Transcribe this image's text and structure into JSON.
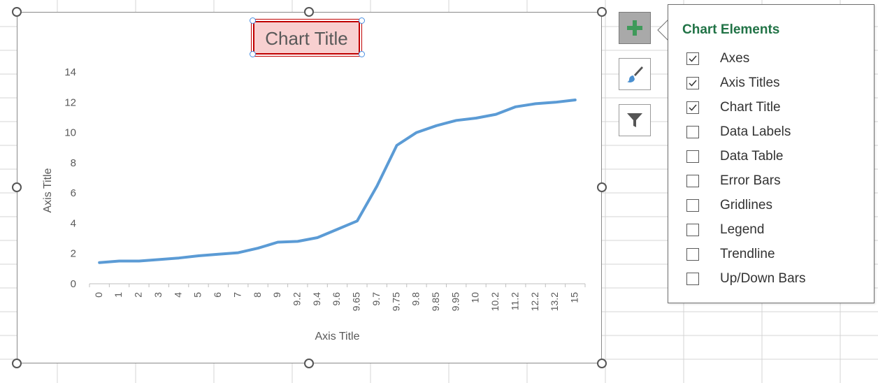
{
  "chart": {
    "title": "Chart Title",
    "x_axis_title": "Axis Title",
    "y_axis_title": "Axis Title",
    "line_color": "#5b9bd5"
  },
  "chart_data": {
    "type": "line",
    "title": "Chart Title",
    "xlabel": "Axis Title",
    "ylabel": "Axis Title",
    "categories": [
      "0",
      "1",
      "2",
      "3",
      "4",
      "5",
      "6",
      "7",
      "8",
      "9",
      "9.2",
      "9.4",
      "9.6",
      "9.65",
      "9.7",
      "9.75",
      "9.8",
      "9.85",
      "9.95",
      "10",
      "10.2",
      "11.2",
      "12.2",
      "13.2",
      "15"
    ],
    "values": [
      1.4,
      1.5,
      1.5,
      1.6,
      1.7,
      1.85,
      1.95,
      2.05,
      2.35,
      2.75,
      2.8,
      3.05,
      3.6,
      4.15,
      6.45,
      9.15,
      10.0,
      10.45,
      10.8,
      10.95,
      11.2,
      11.7,
      11.9,
      12.0,
      12.15
    ],
    "ylim": [
      0,
      14
    ],
    "yticks": [
      0,
      2,
      4,
      6,
      8,
      10,
      12,
      14
    ],
    "grid": false,
    "legend": "none"
  },
  "buttons": {
    "chart_elements_icon": "plus-icon",
    "chart_styles_icon": "paintbrush-icon",
    "chart_filters_icon": "filter-icon"
  },
  "flyout": {
    "title": "Chart Elements",
    "options": [
      {
        "label": "Axes",
        "checked": true
      },
      {
        "label": "Axis Titles",
        "checked": true
      },
      {
        "label": "Chart Title",
        "checked": true
      },
      {
        "label": "Data Labels",
        "checked": false
      },
      {
        "label": "Data Table",
        "checked": false
      },
      {
        "label": "Error Bars",
        "checked": false
      },
      {
        "label": "Gridlines",
        "checked": false
      },
      {
        "label": "Legend",
        "checked": false
      },
      {
        "label": "Trendline",
        "checked": false
      },
      {
        "label": "Up/Down Bars",
        "checked": false
      }
    ]
  }
}
